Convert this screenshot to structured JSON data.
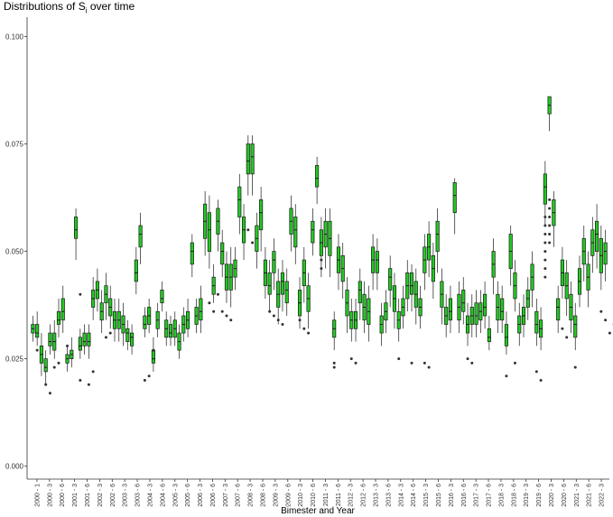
{
  "chart_data": {
    "type": "box",
    "title_main": "Distributions of S",
    "title_sub": "i",
    "title_rest": " over time",
    "xlabel": "Bimester and Year",
    "ylabel": "",
    "ylim": [
      -0.003,
      0.1045
    ],
    "y_ticks": [
      0.0,
      0.025,
      0.05,
      0.075,
      0.1
    ],
    "y_tick_labels": [
      "0.000",
      "0.025",
      "0.050",
      "0.075",
      "0.100"
    ],
    "x_tick_labels": [
      "2000 - 1",
      "2000 - 3",
      "2000 - 6",
      "2001 - 3",
      "2001 - 6",
      "2002 - 3",
      "2002 - 6",
      "2003 - 3",
      "2003 - 6",
      "2004 - 3",
      "2004 - 6",
      "2005 - 3",
      "2005 - 6",
      "2006 - 3",
      "2006 - 6",
      "2007 - 3",
      "2007 - 6",
      "2008 - 3",
      "2008 - 6",
      "2009 - 3",
      "2009 - 6",
      "2010 - 3",
      "2010 - 6",
      "2011 - 3",
      "2011 - 6",
      "2012 - 3",
      "2012 - 6",
      "2013 - 3",
      "2013 - 6",
      "2014 - 3",
      "2014 - 6",
      "2015 - 3",
      "2015 - 6",
      "2016 - 3",
      "2016 - 6",
      "2017 - 3",
      "2017 - 6",
      "2018 - 3",
      "2018 - 6",
      "2019 - 3",
      "2019 - 6",
      "2020 - 3",
      "2020 - 6",
      "2021 - 3",
      "2021 - 6",
      "2022 - 3"
    ],
    "box_fill": "#22c922",
    "box_stroke": "#1a1a1a",
    "median_values": [
      0.032,
      0.031,
      0.026,
      0.023,
      0.029,
      0.029,
      0.034,
      0.036,
      0.025,
      0.026,
      0.055,
      0.028,
      0.029,
      0.029,
      0.039,
      0.041,
      0.036,
      0.04,
      0.037,
      0.034,
      0.034,
      0.033,
      0.031,
      0.03,
      0.045,
      0.054,
      0.033,
      0.035,
      0.025,
      0.034,
      0.039,
      0.032,
      0.031,
      0.032,
      0.029,
      0.033,
      0.034,
      0.05,
      0.035,
      0.036,
      0.057,
      0.055,
      0.042,
      0.057,
      0.05,
      0.044,
      0.044,
      0.046,
      0.062,
      0.055,
      0.071,
      0.072,
      0.053,
      0.059,
      0.045,
      0.042,
      0.048,
      0.04,
      0.043,
      0.041,
      0.057,
      0.055,
      0.038,
      0.045,
      0.039,
      0.055,
      0.067,
      0.052,
      0.054,
      0.053,
      0.032,
      0.048,
      0.046,
      0.038,
      0.034,
      0.034,
      0.041,
      0.037,
      0.036,
      0.048,
      0.048,
      0.033,
      0.036,
      0.044,
      0.039,
      0.034,
      0.037,
      0.042,
      0.042,
      0.04,
      0.037,
      0.048,
      0.051,
      0.046,
      0.054,
      0.04,
      0.035,
      0.036,
      0.063,
      0.037,
      0.038,
      0.033,
      0.035,
      0.035,
      0.036,
      0.037,
      0.03,
      0.047,
      0.037,
      0.036,
      0.03,
      0.05,
      0.042,
      0.033,
      0.035,
      0.039,
      0.044,
      0.033,
      0.032,
      0.065,
      0.084,
      0.059,
      0.037,
      0.045,
      0.042,
      0.037,
      0.033,
      0.043,
      0.05,
      0.044,
      0.052,
      0.054,
      0.049,
      0.05
    ],
    "q1_values": [
      0.031,
      0.03,
      0.024,
      0.022,
      0.028,
      0.027,
      0.033,
      0.034,
      0.024,
      0.025,
      0.053,
      0.027,
      0.028,
      0.028,
      0.037,
      0.039,
      0.034,
      0.038,
      0.035,
      0.032,
      0.032,
      0.031,
      0.029,
      0.028,
      0.043,
      0.051,
      0.032,
      0.033,
      0.024,
      0.032,
      0.038,
      0.03,
      0.03,
      0.03,
      0.027,
      0.031,
      0.032,
      0.047,
      0.033,
      0.034,
      0.053,
      0.05,
      0.04,
      0.054,
      0.047,
      0.041,
      0.041,
      0.044,
      0.058,
      0.052,
      0.068,
      0.068,
      0.05,
      0.055,
      0.042,
      0.04,
      0.045,
      0.037,
      0.04,
      0.038,
      0.054,
      0.051,
      0.035,
      0.042,
      0.036,
      0.052,
      0.065,
      0.049,
      0.051,
      0.049,
      0.03,
      0.045,
      0.043,
      0.035,
      0.032,
      0.032,
      0.038,
      0.034,
      0.033,
      0.045,
      0.045,
      0.031,
      0.034,
      0.041,
      0.036,
      0.032,
      0.035,
      0.039,
      0.04,
      0.037,
      0.035,
      0.045,
      0.048,
      0.043,
      0.05,
      0.037,
      0.033,
      0.034,
      0.059,
      0.034,
      0.036,
      0.031,
      0.033,
      0.033,
      0.034,
      0.035,
      0.029,
      0.044,
      0.034,
      0.034,
      0.028,
      0.046,
      0.039,
      0.031,
      0.033,
      0.037,
      0.041,
      0.031,
      0.03,
      0.061,
      0.082,
      0.056,
      0.034,
      0.042,
      0.039,
      0.034,
      0.03,
      0.04,
      0.047,
      0.041,
      0.049,
      0.05,
      0.045,
      0.047
    ],
    "q3_values": [
      0.033,
      0.033,
      0.028,
      0.025,
      0.031,
      0.031,
      0.036,
      0.039,
      0.026,
      0.027,
      0.058,
      0.03,
      0.031,
      0.031,
      0.041,
      0.043,
      0.038,
      0.042,
      0.039,
      0.036,
      0.036,
      0.035,
      0.032,
      0.031,
      0.048,
      0.056,
      0.035,
      0.037,
      0.027,
      0.036,
      0.041,
      0.034,
      0.033,
      0.034,
      0.031,
      0.035,
      0.036,
      0.052,
      0.037,
      0.039,
      0.061,
      0.059,
      0.044,
      0.06,
      0.052,
      0.047,
      0.047,
      0.048,
      0.065,
      0.058,
      0.075,
      0.075,
      0.056,
      0.062,
      0.048,
      0.045,
      0.05,
      0.043,
      0.045,
      0.043,
      0.06,
      0.058,
      0.041,
      0.048,
      0.042,
      0.057,
      0.07,
      0.055,
      0.057,
      0.057,
      0.034,
      0.051,
      0.049,
      0.041,
      0.036,
      0.036,
      0.043,
      0.04,
      0.039,
      0.051,
      0.05,
      0.035,
      0.038,
      0.046,
      0.042,
      0.036,
      0.039,
      0.045,
      0.045,
      0.043,
      0.039,
      0.051,
      0.054,
      0.049,
      0.057,
      0.043,
      0.037,
      0.039,
      0.066,
      0.04,
      0.041,
      0.035,
      0.037,
      0.038,
      0.038,
      0.04,
      0.032,
      0.05,
      0.04,
      0.039,
      0.033,
      0.054,
      0.045,
      0.035,
      0.037,
      0.041,
      0.047,
      0.036,
      0.034,
      0.068,
      0.086,
      0.062,
      0.039,
      0.048,
      0.045,
      0.04,
      0.035,
      0.046,
      0.053,
      0.047,
      0.055,
      0.057,
      0.053,
      0.052
    ],
    "min_values": [
      0.029,
      0.028,
      0.021,
      0.019,
      0.026,
      0.025,
      0.03,
      0.031,
      0.022,
      0.023,
      0.048,
      0.025,
      0.026,
      0.025,
      0.034,
      0.036,
      0.031,
      0.034,
      0.032,
      0.029,
      0.029,
      0.028,
      0.027,
      0.026,
      0.04,
      0.047,
      0.03,
      0.031,
      0.022,
      0.03,
      0.036,
      0.028,
      0.028,
      0.028,
      0.025,
      0.029,
      0.03,
      0.044,
      0.031,
      0.031,
      0.049,
      0.046,
      0.038,
      0.05,
      0.044,
      0.038,
      0.037,
      0.041,
      0.054,
      0.048,
      0.063,
      0.063,
      0.046,
      0.05,
      0.039,
      0.036,
      0.041,
      0.033,
      0.036,
      0.035,
      0.05,
      0.047,
      0.032,
      0.038,
      0.032,
      0.049,
      0.061,
      0.044,
      0.046,
      0.044,
      0.027,
      0.041,
      0.039,
      0.031,
      0.029,
      0.029,
      0.034,
      0.031,
      0.029,
      0.041,
      0.041,
      0.028,
      0.031,
      0.037,
      0.032,
      0.029,
      0.032,
      0.036,
      0.036,
      0.033,
      0.032,
      0.041,
      0.044,
      0.039,
      0.045,
      0.033,
      0.03,
      0.031,
      0.054,
      0.031,
      0.033,
      0.028,
      0.03,
      0.03,
      0.031,
      0.032,
      0.027,
      0.04,
      0.031,
      0.031,
      0.026,
      0.042,
      0.036,
      0.028,
      0.03,
      0.034,
      0.037,
      0.028,
      0.027,
      0.056,
      0.078,
      0.051,
      0.031,
      0.039,
      0.035,
      0.031,
      0.027,
      0.037,
      0.043,
      0.037,
      0.045,
      0.046,
      0.041,
      0.043
    ],
    "max_values": [
      0.035,
      0.036,
      0.031,
      0.027,
      0.033,
      0.034,
      0.039,
      0.042,
      0.028,
      0.03,
      0.06,
      0.032,
      0.033,
      0.033,
      0.044,
      0.046,
      0.041,
      0.045,
      0.042,
      0.039,
      0.039,
      0.038,
      0.034,
      0.033,
      0.051,
      0.059,
      0.037,
      0.039,
      0.03,
      0.038,
      0.043,
      0.036,
      0.035,
      0.036,
      0.033,
      0.037,
      0.039,
      0.054,
      0.039,
      0.042,
      0.064,
      0.063,
      0.047,
      0.062,
      0.055,
      0.05,
      0.051,
      0.051,
      0.068,
      0.061,
      0.077,
      0.077,
      0.059,
      0.065,
      0.051,
      0.048,
      0.053,
      0.046,
      0.048,
      0.046,
      0.063,
      0.061,
      0.044,
      0.051,
      0.045,
      0.06,
      0.072,
      0.058,
      0.06,
      0.06,
      0.036,
      0.054,
      0.052,
      0.044,
      0.039,
      0.039,
      0.046,
      0.043,
      0.042,
      0.054,
      0.053,
      0.038,
      0.041,
      0.049,
      0.045,
      0.039,
      0.042,
      0.048,
      0.047,
      0.046,
      0.042,
      0.054,
      0.057,
      0.052,
      0.06,
      0.046,
      0.04,
      0.042,
      0.067,
      0.043,
      0.044,
      0.038,
      0.04,
      0.041,
      0.041,
      0.043,
      0.035,
      0.053,
      0.043,
      0.042,
      0.036,
      0.056,
      0.048,
      0.038,
      0.04,
      0.044,
      0.05,
      0.039,
      0.037,
      0.071,
      0.086,
      0.064,
      0.042,
      0.051,
      0.048,
      0.043,
      0.038,
      0.049,
      0.056,
      0.05,
      0.058,
      0.061,
      0.056,
      0.055
    ],
    "outliers": [
      [
        1,
        0.027
      ],
      [
        3,
        0.019
      ],
      [
        4,
        0.017
      ],
      [
        5,
        0.023
      ],
      [
        6,
        0.024
      ],
      [
        8,
        0.028
      ],
      [
        11,
        0.04
      ],
      [
        11,
        0.02
      ],
      [
        13,
        0.019
      ],
      [
        14,
        0.022
      ],
      [
        17,
        0.03
      ],
      [
        18,
        0.031
      ],
      [
        26,
        0.02
      ],
      [
        27,
        0.021
      ],
      [
        28,
        0.027
      ],
      [
        41,
        0.038
      ],
      [
        42,
        0.036
      ],
      [
        43,
        0.04
      ],
      [
        44,
        0.036
      ],
      [
        45,
        0.035
      ],
      [
        46,
        0.034
      ],
      [
        50,
        0.055
      ],
      [
        51,
        0.052
      ],
      [
        55,
        0.036
      ],
      [
        56,
        0.035
      ],
      [
        57,
        0.034
      ],
      [
        58,
        0.033
      ],
      [
        62,
        0.034
      ],
      [
        63,
        0.032
      ],
      [
        64,
        0.031
      ],
      [
        67,
        0.048
      ],
      [
        67,
        0.046
      ],
      [
        70,
        0.024
      ],
      [
        70,
        0.023
      ],
      [
        74,
        0.025
      ],
      [
        75,
        0.024
      ],
      [
        85,
        0.025
      ],
      [
        88,
        0.024
      ],
      [
        91,
        0.024
      ],
      [
        92,
        0.023
      ],
      [
        101,
        0.025
      ],
      [
        102,
        0.024
      ],
      [
        110,
        0.021
      ],
      [
        112,
        0.024
      ],
      [
        117,
        0.022
      ],
      [
        118,
        0.02
      ],
      [
        119,
        0.058
      ],
      [
        119,
        0.056
      ],
      [
        119,
        0.054
      ],
      [
        119,
        0.052
      ],
      [
        119,
        0.05
      ],
      [
        119,
        0.048
      ],
      [
        119,
        0.046
      ],
      [
        119,
        0.044
      ],
      [
        120,
        0.062
      ],
      [
        120,
        0.06
      ],
      [
        120,
        0.058
      ],
      [
        120,
        0.056
      ],
      [
        120,
        0.054
      ],
      [
        120,
        0.052
      ],
      [
        123,
        0.032
      ],
      [
        124,
        0.03
      ],
      [
        126,
        0.023
      ],
      [
        132,
        0.036
      ],
      [
        133,
        0.034
      ],
      [
        134,
        0.031
      ],
      [
        135,
        0.033
      ]
    ]
  }
}
